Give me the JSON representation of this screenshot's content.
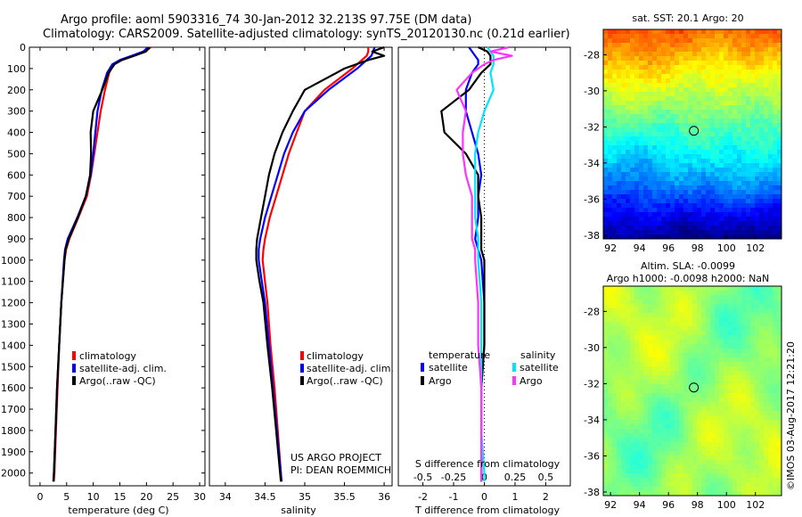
{
  "header": {
    "title_line1": "Argo profile: aoml 5903316_74 30-Jan-2012 32.213S 97.75E (DM data)",
    "title_line2": "Climatology: CARS2009. Satellite-adjusted climatology: synTS_20120130.nc (0.21d earlier)"
  },
  "colors": {
    "climatology": "#ff0000",
    "satellite": "#0000ff",
    "argo": "#000000",
    "salinity_satellite": "#00e5ff",
    "salinity_argo": "#ff33ff"
  },
  "chart_data": [
    {
      "type": "line",
      "panel": "temperature",
      "xlabel": "temperature (deg C)",
      "ylabel": "",
      "xlim": [
        -2,
        31
      ],
      "ylim": [
        2060,
        0
      ],
      "xticks": [
        0,
        5,
        10,
        15,
        20,
        25,
        30
      ],
      "yticks": [
        0,
        100,
        200,
        300,
        400,
        500,
        600,
        700,
        800,
        900,
        1000,
        1100,
        1200,
        1300,
        1400,
        1500,
        1600,
        1700,
        1800,
        1900,
        2000
      ],
      "depth": [
        0,
        20,
        40,
        60,
        80,
        120,
        200,
        300,
        400,
        500,
        600,
        700,
        800,
        900,
        950,
        1000,
        1200,
        1400,
        1600,
        1800,
        2000,
        2040
      ],
      "legend": [
        "climatology",
        "satellite-adj. clim.",
        "Argo(..raw -QC)"
      ],
      "series": [
        {
          "name": "climatology",
          "values": [
            20.8,
            19.8,
            17.5,
            15.2,
            13.8,
            13.0,
            12.2,
            11.4,
            10.8,
            10.2,
            9.6,
            8.8,
            7.2,
            5.5,
            4.9,
            4.6,
            4.0,
            3.6,
            3.3,
            3.0,
            2.7,
            2.6
          ]
        },
        {
          "name": "satellite-adj. clim.",
          "values": [
            20.3,
            19.4,
            17.2,
            15.0,
            13.6,
            12.6,
            11.6,
            10.8,
            10.4,
            10.0,
            9.5,
            8.6,
            7.0,
            5.2,
            4.7,
            4.5,
            4.0,
            3.6,
            3.2,
            2.9,
            2.6,
            2.5
          ]
        },
        {
          "name": "Argo(..raw -QC)",
          "values": [
            20.6,
            19.9,
            17.7,
            15.4,
            14.0,
            12.9,
            11.7,
            10.0,
            9.5,
            9.6,
            9.4,
            8.6,
            7.1,
            5.4,
            4.8,
            4.6,
            4.0,
            3.6,
            3.2,
            2.9,
            2.6,
            2.5
          ]
        }
      ]
    },
    {
      "type": "line",
      "panel": "salinity",
      "xlabel": "salinity",
      "ylabel": "",
      "xlim": [
        33.8,
        36.1
      ],
      "ylim": [
        2060,
        0
      ],
      "xticks": [
        34,
        34.5,
        35,
        35.5,
        36
      ],
      "xtick_labels": [
        "34",
        "34.5",
        "35",
        "35.5",
        "36"
      ],
      "depth": [
        0,
        20,
        40,
        60,
        100,
        200,
        300,
        400,
        500,
        600,
        700,
        800,
        900,
        950,
        1000,
        1100,
        1200,
        1400,
        1600,
        1800,
        2000,
        2040
      ],
      "legend": [
        "climatology",
        "satellite-adj. clim.",
        "Argo(..raw -QC)"
      ],
      "series": [
        {
          "name": "climatology",
          "values": [
            35.8,
            35.8,
            35.78,
            35.72,
            35.6,
            35.25,
            35.0,
            34.9,
            34.8,
            34.72,
            34.64,
            34.56,
            34.5,
            34.48,
            34.47,
            34.5,
            34.53,
            34.57,
            34.62,
            34.66,
            34.7,
            34.7
          ]
        },
        {
          "name": "satellite-adj. clim.",
          "values": [
            35.88,
            35.86,
            35.84,
            35.78,
            35.66,
            35.3,
            35.0,
            34.85,
            34.74,
            34.66,
            34.58,
            34.5,
            34.44,
            34.42,
            34.42,
            34.46,
            34.5,
            34.55,
            34.6,
            34.65,
            34.7,
            34.71
          ]
        },
        {
          "name": "Argo(..raw -QC)",
          "values": [
            36.0,
            35.85,
            36.0,
            35.8,
            35.5,
            35.0,
            34.85,
            34.72,
            34.62,
            34.55,
            34.5,
            34.45,
            34.4,
            34.39,
            34.39,
            34.43,
            34.48,
            34.53,
            34.59,
            34.64,
            34.69,
            34.7
          ]
        }
      ]
    },
    {
      "type": "line",
      "panel": "difference",
      "xlabel": "T difference from climatology",
      "xlabel_top": "S difference from climatology",
      "ylabel": "",
      "xlim": [
        -2.8,
        2.8
      ],
      "ylim": [
        2060,
        0
      ],
      "xticks": [
        -2,
        -1,
        0,
        1,
        2
      ],
      "xtick_labels": [
        "-2",
        "-1",
        "0",
        "1",
        "2"
      ],
      "xticks_top": [
        -0.5,
        -0.25,
        0,
        0.25,
        0.5
      ],
      "xticks_top_pos": [
        -2,
        -1,
        0,
        1,
        2
      ],
      "depth": [
        0,
        20,
        40,
        60,
        80,
        120,
        200,
        300,
        400,
        500,
        600,
        700,
        800,
        900,
        950,
        1000,
        1200,
        1400,
        1600,
        1800,
        2000,
        2040
      ],
      "legend_title_left": "temperature",
      "legend_title_right": "salinity",
      "legend_left": [
        "satellite",
        "Argo"
      ],
      "legend_right": [
        "satellite",
        "Argo"
      ],
      "series": [
        {
          "name": "temperature satellite",
          "values": [
            -0.5,
            -0.4,
            -0.3,
            -0.2,
            -0.2,
            -0.4,
            -0.6,
            -0.6,
            -0.4,
            -0.2,
            -0.1,
            -0.2,
            -0.2,
            -0.3,
            -0.2,
            -0.1,
            0.0,
            0.0,
            -0.1,
            -0.1,
            -0.1,
            -0.1
          ]
        },
        {
          "name": "temperature Argo",
          "values": [
            -0.2,
            0.1,
            0.2,
            0.2,
            0.2,
            -0.1,
            -0.5,
            -1.4,
            -1.3,
            -0.6,
            -0.2,
            -0.2,
            -0.1,
            -0.1,
            -0.1,
            0.0,
            0.0,
            0.0,
            -0.1,
            -0.1,
            -0.1,
            -0.1
          ]
        },
        {
          "name": "salinity satellite",
          "values": [
            0.1,
            0.2,
            0.3,
            0.3,
            0.3,
            0.2,
            0.3,
            0.0,
            -0.2,
            -0.3,
            -0.3,
            -0.3,
            -0.3,
            -0.2,
            -0.2,
            -0.2,
            -0.1,
            -0.1,
            -0.1,
            -0.1,
            0.0,
            0.0
          ]
        },
        {
          "name": "salinity Argo",
          "values": [
            0.8,
            0.2,
            0.9,
            0.3,
            0.0,
            -0.4,
            -0.9,
            -0.6,
            -0.7,
            -0.7,
            -0.6,
            -0.4,
            -0.4,
            -0.4,
            -0.3,
            -0.3,
            -0.2,
            -0.2,
            -0.1,
            -0.1,
            -0.1,
            -0.1
          ]
        }
      ]
    },
    {
      "type": "heatmap",
      "panel": "sst-map",
      "title": "sat. SST: 20.1 Argo: 20",
      "xlim": [
        91.5,
        103.8
      ],
      "ylim": [
        -38.2,
        -26.6
      ],
      "xticks": [
        92,
        94,
        96,
        98,
        100,
        102
      ],
      "yticks": [
        -28,
        -30,
        -32,
        -34,
        -36,
        -38
      ],
      "argo_location": {
        "lon": 97.75,
        "lat": -32.213
      },
      "value_range": [
        14,
        24
      ]
    },
    {
      "type": "heatmap",
      "panel": "sla-map",
      "title_line1": "Altim. SLA: -0.0099",
      "title_line2": "Argo h1000: -0.0098 h2000: NaN",
      "xlim": [
        91.5,
        103.8
      ],
      "ylim": [
        -38.2,
        -26.6
      ],
      "xticks": [
        92,
        94,
        96,
        98,
        100,
        102
      ],
      "yticks": [
        -28,
        -30,
        -32,
        -34,
        -36,
        -38
      ],
      "argo_location": {
        "lon": 97.75,
        "lat": -32.213
      },
      "value_range": [
        -0.2,
        0.2
      ]
    }
  ],
  "credits": {
    "project": "US ARGO PROJECT",
    "pi": "PI: DEAN ROEMMICH",
    "stamp": "©IMOS 03-Aug-2017 12:21:20"
  }
}
